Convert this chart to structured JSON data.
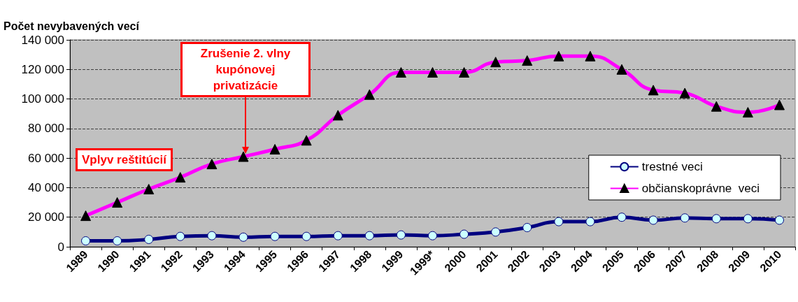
{
  "chart_data": {
    "type": "line",
    "ylabel": "Počet nevybavených vecí",
    "categories": [
      "1989",
      "1990",
      "1991",
      "1992",
      "1993",
      "1994",
      "1995",
      "1996",
      "1997",
      "1998",
      "1999",
      "1999*",
      "2000",
      "2001",
      "2002",
      "2003",
      "2004",
      "2005",
      "2006",
      "2007",
      "2008",
      "2009",
      "2010"
    ],
    "series": [
      {
        "name": "trestné veci",
        "color": "#000080",
        "marker": "circle",
        "values": [
          4000,
          4000,
          5000,
          7000,
          7500,
          6500,
          7000,
          7000,
          7500,
          7500,
          8000,
          7500,
          8500,
          10000,
          13000,
          17000,
          17000,
          20000,
          18000,
          19500,
          19000,
          19000,
          18000
        ]
      },
      {
        "name": "občianskoprávne  veci",
        "color": "#ff00ff",
        "marker": "triangle",
        "values": [
          21000,
          30000,
          39000,
          47000,
          56000,
          61000,
          66000,
          72000,
          89000,
          103000,
          118000,
          118000,
          118000,
          125000,
          126000,
          129000,
          129000,
          120000,
          106000,
          104000,
          95000,
          91000,
          96000
        ]
      }
    ],
    "ylim": [
      0,
      140000
    ],
    "yticks": [
      0,
      {
        "value": 20000,
        "label": "20 000"
      },
      {
        "value": 40000,
        "label": "40 000"
      },
      {
        "value": 60000,
        "label": "60 000"
      },
      {
        "value": 80000,
        "label": "80 000"
      },
      {
        "value": 100000,
        "label": "100 000"
      },
      {
        "value": 120000,
        "label": "120 000"
      },
      {
        "value": 140000,
        "label": "140 000"
      }
    ],
    "grid": "y",
    "legend": "right",
    "annotations": [
      "Zrušenie 2. vlny kupónovej privatizácie",
      "Vplyv reštitúcií"
    ]
  }
}
